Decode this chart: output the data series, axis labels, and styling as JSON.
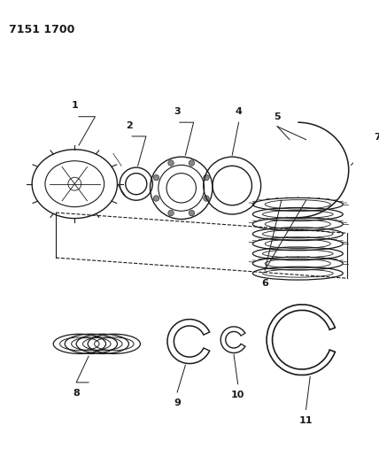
{
  "title": "7151 1700",
  "bg_color": "#ffffff",
  "line_color": "#1a1a1a",
  "figsize": [
    4.28,
    5.33
  ],
  "dpi": 100
}
